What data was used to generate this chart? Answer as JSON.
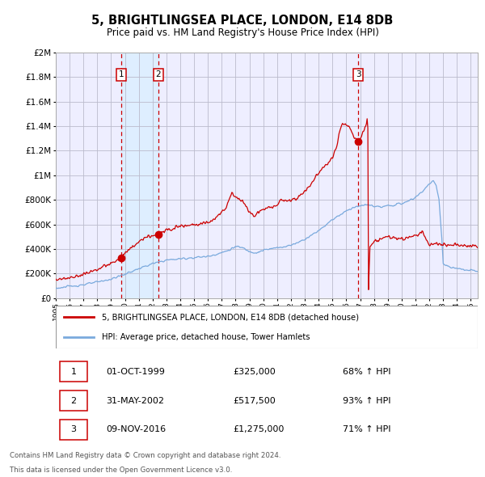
{
  "title": "5, BRIGHTLINGSEA PLACE, LONDON, E14 8DB",
  "subtitle": "Price paid vs. HM Land Registry's House Price Index (HPI)",
  "legend_line1": "5, BRIGHTLINGSEA PLACE, LONDON, E14 8DB (detached house)",
  "legend_line2": "HPI: Average price, detached house, Tower Hamlets",
  "footer1": "Contains HM Land Registry data © Crown copyright and database right 2024.",
  "footer2": "This data is licensed under the Open Government Licence v3.0.",
  "transactions": [
    {
      "num": "1",
      "date": "01-OCT-1999",
      "price": "£325,000",
      "hpi": "68% ↑ HPI",
      "year": 1999.75,
      "price_val": 325000
    },
    {
      "num": "2",
      "date": "31-MAY-2002",
      "price": "£517,500",
      "hpi": "93% ↑ HPI",
      "year": 2002.42,
      "price_val": 517500
    },
    {
      "num": "3",
      "date": "09-NOV-2016",
      "price": "£1,275,000",
      "hpi": "71% ↑ HPI",
      "year": 2016.86,
      "price_val": 1275000
    }
  ],
  "red_line_color": "#cc0000",
  "blue_line_color": "#7aaadd",
  "dot_color": "#cc0000",
  "dashed_color": "#cc0000",
  "shade_color": "#ddeeff",
  "grid_color": "#bbbbcc",
  "background_color": "#ffffff",
  "plot_bg_color": "#eeeeff",
  "ylim": [
    0,
    2000000
  ],
  "xlim_start": 1995.0,
  "xlim_end": 2025.5,
  "yticks": [
    0,
    200000,
    400000,
    600000,
    800000,
    1000000,
    1200000,
    1400000,
    1600000,
    1800000,
    2000000
  ]
}
